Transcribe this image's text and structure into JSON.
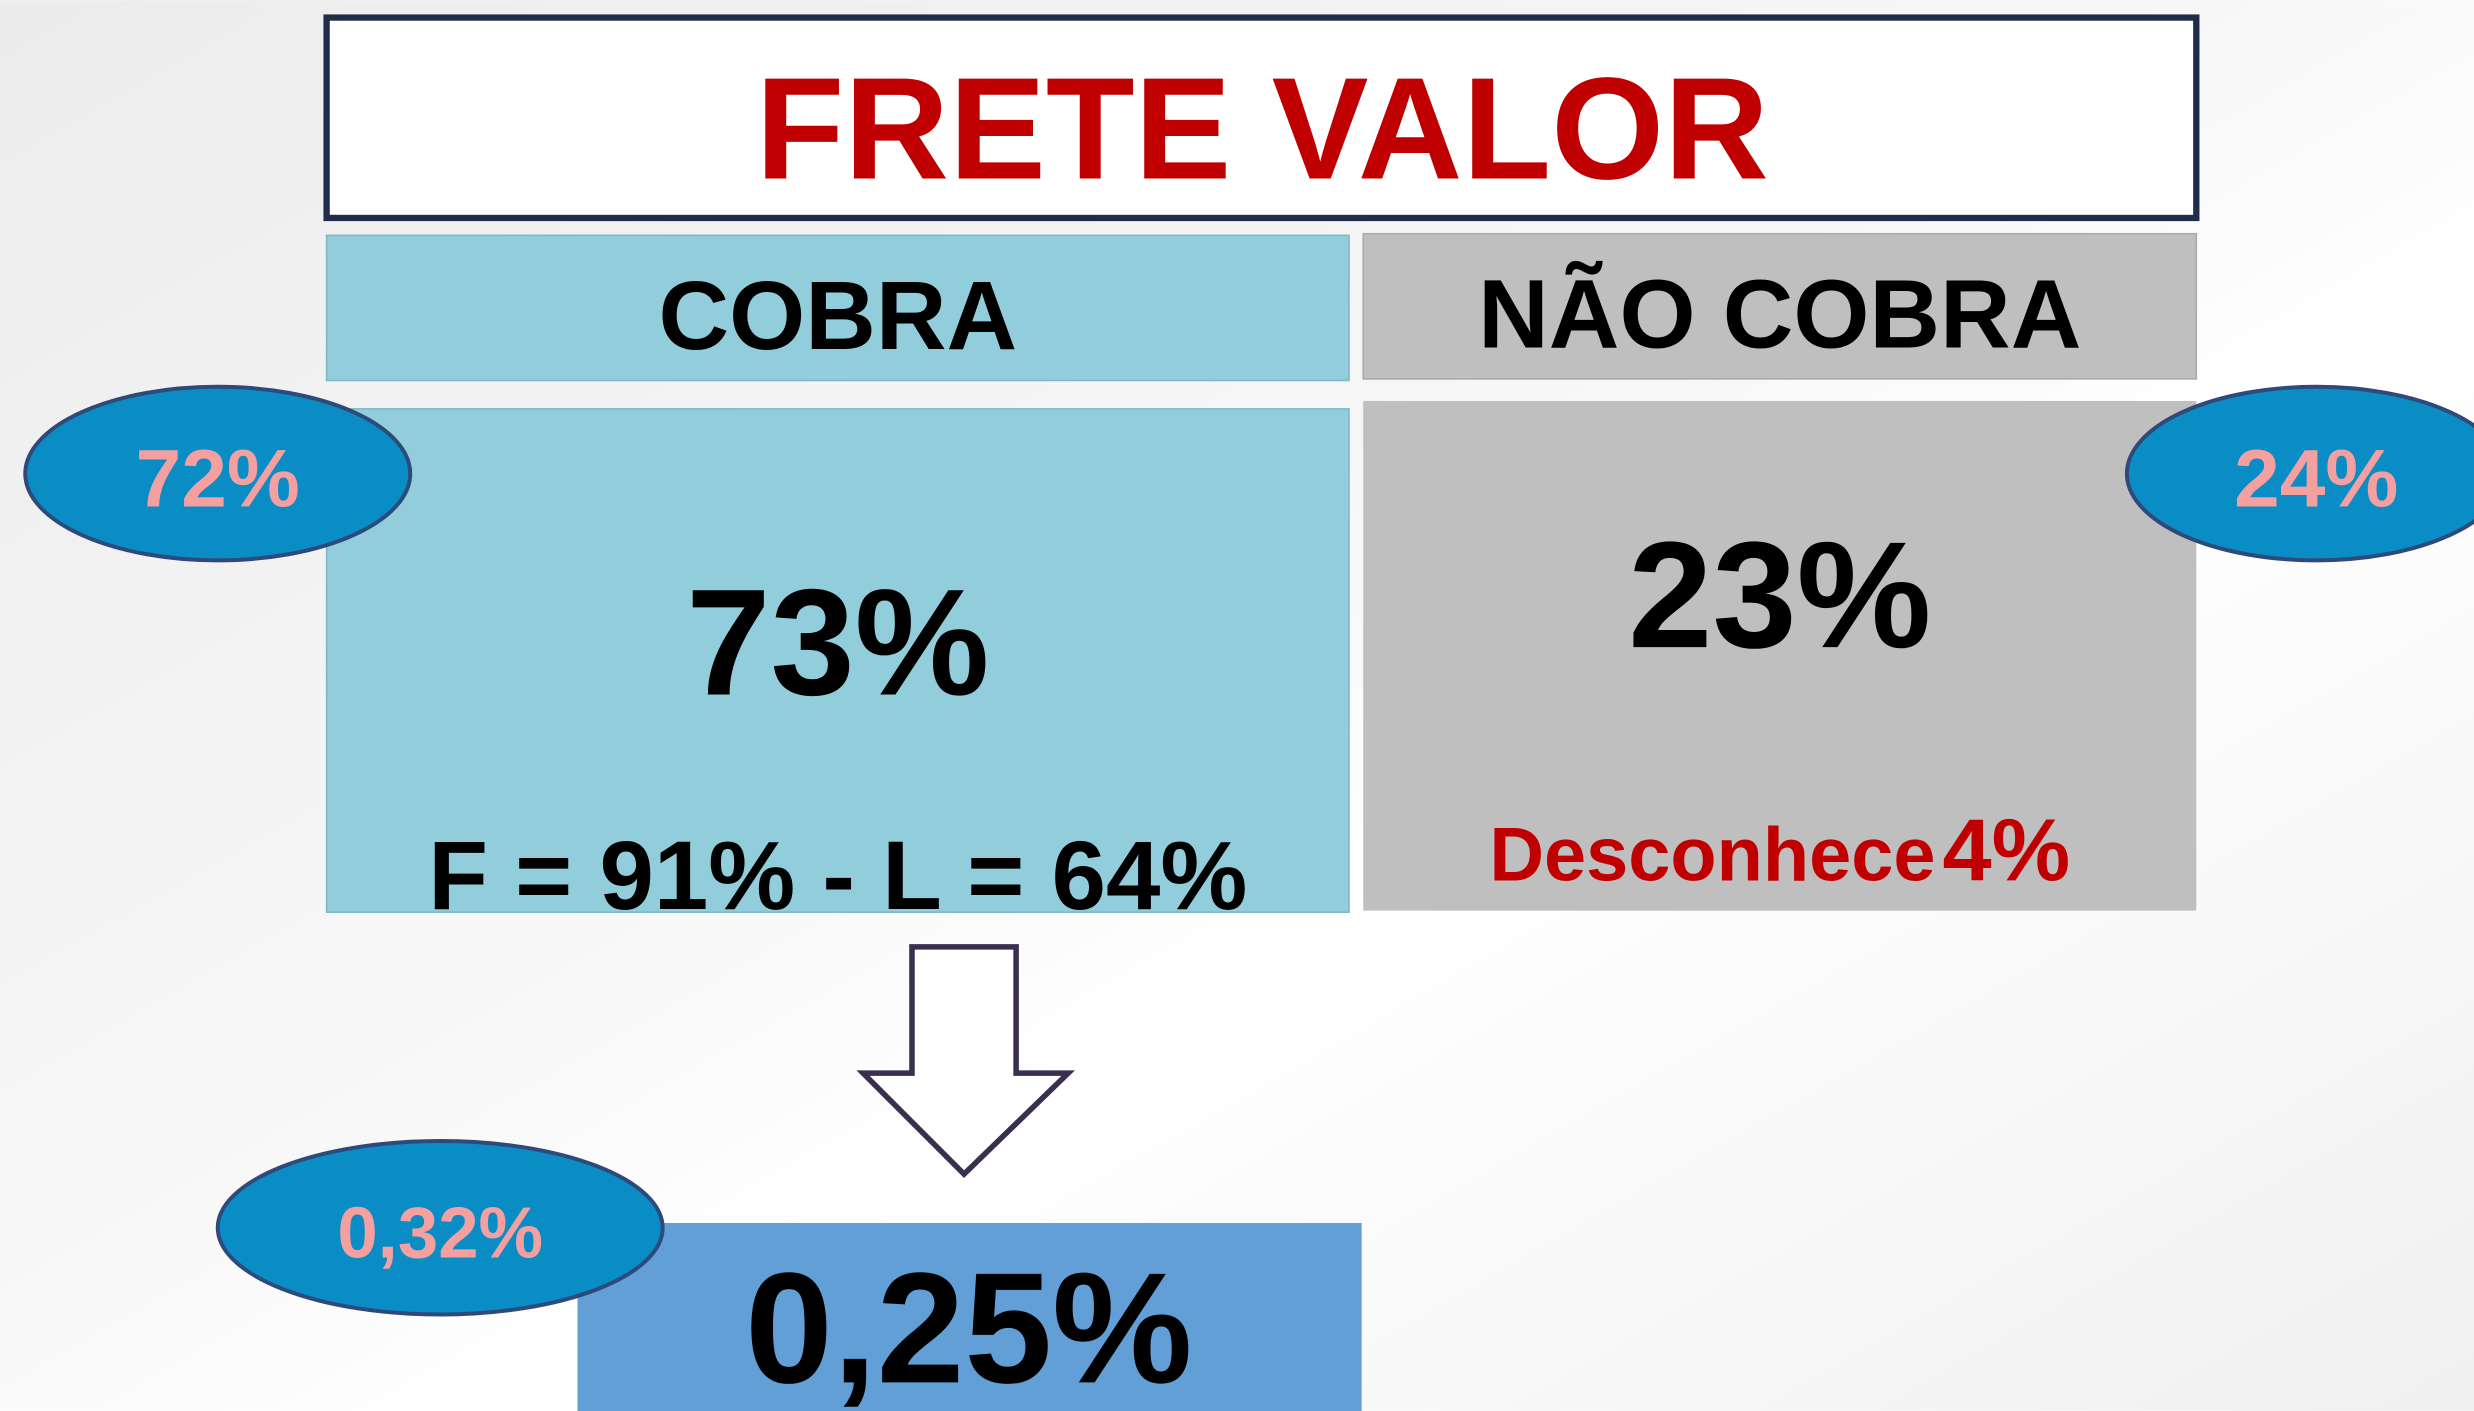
{
  "title": "FRETE VALOR",
  "cobra": {
    "header": "COBRA",
    "value": "73%",
    "detail": "F = 91% - L = 64%",
    "badge": "72%"
  },
  "nao_cobra": {
    "header": "NÃO COBRA",
    "value": "23%",
    "detail_label": "Desconhece",
    "detail_value": "4%",
    "badge": "24%"
  },
  "result": {
    "value": "0,25%",
    "badge": "0,32%"
  }
}
